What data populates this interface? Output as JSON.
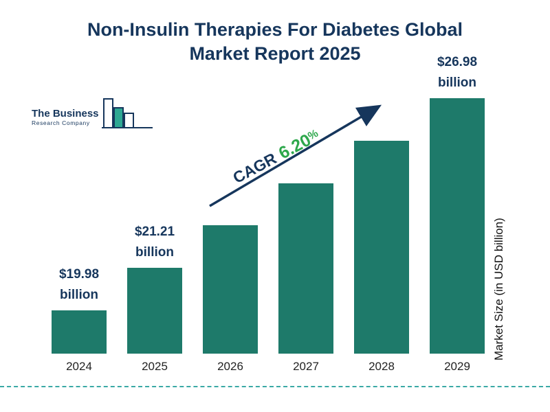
{
  "title": {
    "line1": "Non-Insulin Therapies For Diabetes Global",
    "line2": "Market Report 2025"
  },
  "logo": {
    "name": "The Business",
    "subname": "Research Company"
  },
  "cagr": {
    "label": "CAGR",
    "value": "6.20",
    "percent": "%"
  },
  "colors": {
    "navy": "#16365c",
    "bar_teal": "#1e7a6a",
    "green": "#2ea84c",
    "dashed_teal": "#3aa9a5"
  },
  "chart_data": {
    "type": "bar",
    "title": "Non-Insulin Therapies For Diabetes Global Market Report 2025",
    "categories": [
      "2024",
      "2025",
      "2026",
      "2027",
      "2028",
      "2029"
    ],
    "values": [
      19.98,
      21.21,
      22.52,
      23.92,
      25.4,
      26.98
    ],
    "unit": "USD billion",
    "xlabel": "",
    "ylabel": "Market Size (in USD billion)",
    "value_labels": [
      [
        "$19.98",
        "billion"
      ],
      [
        "$21.21",
        "billion"
      ],
      null,
      null,
      null,
      [
        "$26.98",
        "billion"
      ]
    ],
    "cagr": "6.20%",
    "ylim": [
      18.5,
      27.5
    ],
    "grid": false,
    "legend": false
  }
}
